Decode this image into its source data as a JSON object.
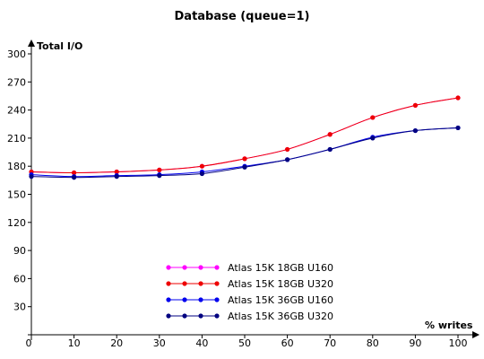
{
  "chart_data": {
    "type": "line",
    "title": "Database (queue=1)",
    "ylabel": "Total I/O",
    "xlabel": "% writes",
    "x": [
      0,
      10,
      20,
      30,
      40,
      50,
      60,
      70,
      80,
      90,
      100
    ],
    "xlim": [
      0,
      100
    ],
    "ylim": [
      0,
      300
    ],
    "xticks": [
      0,
      10,
      20,
      30,
      40,
      50,
      60,
      70,
      80,
      90,
      100
    ],
    "yticks": [
      30,
      60,
      90,
      120,
      150,
      180,
      210,
      240,
      270,
      300
    ],
    "grid": false,
    "legend_position": "bottom-center",
    "series": [
      {
        "name": "Atlas 15K 18GB U160",
        "color": "#ff00ff",
        "values": [
          174,
          173,
          174,
          176,
          180,
          188,
          198,
          214,
          232,
          245,
          253
        ]
      },
      {
        "name": "Atlas 15K 18GB U320",
        "color": "#ee0000",
        "values": [
          174,
          173,
          174,
          176,
          180,
          188,
          198,
          214,
          232,
          245,
          253
        ]
      },
      {
        "name": "Atlas 15K 36GB U160",
        "color": "#0000ee",
        "values": [
          171,
          169,
          170,
          171,
          174,
          180,
          187,
          198,
          211,
          218,
          221
        ]
      },
      {
        "name": "Atlas 15K 36GB U320",
        "color": "#000080",
        "values": [
          169,
          168,
          169,
          170,
          172,
          179,
          187,
          198,
          210,
          218,
          221
        ]
      }
    ]
  }
}
